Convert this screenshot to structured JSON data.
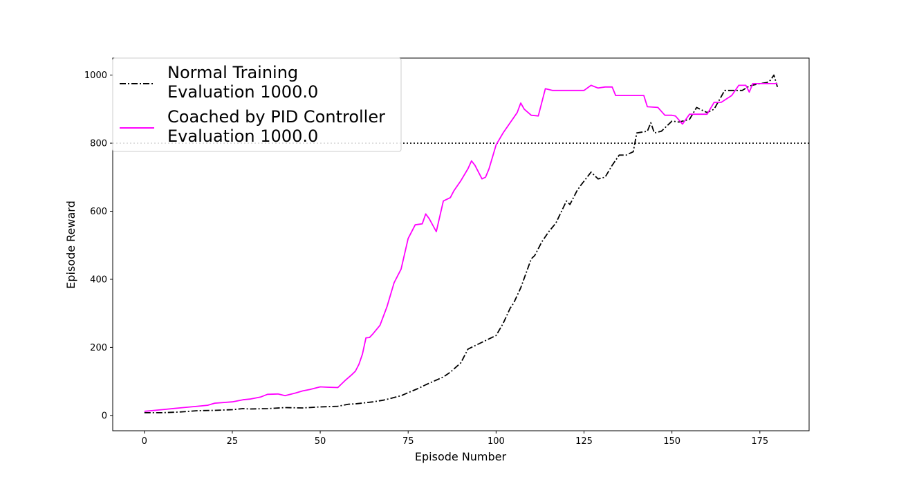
{
  "chart_data": {
    "type": "line",
    "xlabel": "Episode Number",
    "ylabel": "Episode Reward",
    "xlim": [
      -9,
      189
    ],
    "ylim": [
      -45,
      1050
    ],
    "xticks": [
      0,
      25,
      50,
      75,
      100,
      125,
      150,
      175
    ],
    "yticks": [
      0,
      200,
      400,
      600,
      800,
      1000
    ],
    "grid": false,
    "legend_position": "top-left",
    "reference_line": {
      "y": 800,
      "style": "dotted",
      "color": "#000000"
    },
    "series": [
      {
        "name": "Normal Training\nEvaluation 1000.0",
        "color": "#000000",
        "style": "dashdot",
        "x": [
          0,
          5,
          10,
          15,
          20,
          25,
          28,
          30,
          35,
          40,
          45,
          50,
          55,
          58,
          60,
          65,
          68,
          70,
          73,
          75,
          78,
          80,
          85,
          87,
          90,
          92,
          95,
          97,
          100,
          102,
          104,
          105,
          107,
          110,
          111,
          113,
          115,
          117,
          120,
          121,
          123,
          124,
          127,
          129,
          131,
          133,
          135,
          137,
          139,
          140,
          143,
          144,
          145,
          147,
          150,
          152,
          155,
          157,
          160,
          162,
          165,
          170,
          172,
          175,
          177,
          178,
          179,
          180
        ],
        "y": [
          8,
          8,
          10,
          14,
          15,
          17,
          20,
          19,
          20,
          23,
          22,
          25,
          27,
          33,
          34,
          40,
          45,
          50,
          58,
          67,
          80,
          90,
          113,
          127,
          155,
          195,
          210,
          220,
          235,
          270,
          315,
          330,
          375,
          460,
          470,
          510,
          540,
          565,
          630,
          620,
          660,
          675,
          715,
          695,
          700,
          735,
          765,
          765,
          775,
          830,
          835,
          860,
          830,
          835,
          865,
          862,
          870,
          905,
          890,
          900,
          955,
          955,
          968,
          975,
          978,
          985,
          1000,
          965
        ]
      },
      {
        "name": "Coached by PID Controller\nEvaluation 1000.0",
        "color": "#ff00ff",
        "style": "solid",
        "x": [
          0,
          5,
          10,
          15,
          18,
          20,
          25,
          28,
          30,
          33,
          35,
          38,
          40,
          43,
          45,
          47,
          50,
          52,
          55,
          57,
          59,
          60,
          61,
          62,
          63,
          64,
          65,
          67,
          69,
          71,
          73,
          75,
          77,
          79,
          80,
          81,
          83,
          85,
          87,
          88,
          90,
          92,
          93,
          94,
          96,
          97,
          98,
          100,
          102,
          104,
          106,
          107,
          108,
          110,
          112,
          114,
          116,
          118,
          120,
          125,
          127,
          129,
          131,
          133,
          134,
          136,
          142,
          143,
          146,
          148,
          150,
          151,
          153,
          155,
          160,
          162,
          164,
          167,
          169,
          171,
          172,
          173,
          175,
          177,
          180
        ],
        "y": [
          12,
          17,
          22,
          27,
          30,
          36,
          40,
          46,
          48,
          54,
          62,
          63,
          58,
          66,
          72,
          76,
          84,
          83,
          82,
          102,
          120,
          130,
          150,
          180,
          228,
          229,
          240,
          265,
          320,
          390,
          430,
          520,
          560,
          563,
          592,
          578,
          540,
          630,
          640,
          660,
          690,
          725,
          748,
          735,
          695,
          700,
          725,
          795,
          830,
          860,
          890,
          918,
          900,
          882,
          880,
          960,
          955,
          955,
          955,
          955,
          970,
          962,
          965,
          965,
          940,
          940,
          940,
          907,
          905,
          882,
          882,
          880,
          856,
          885,
          885,
          920,
          920,
          940,
          970,
          970,
          950,
          975,
          975,
          975,
          975
        ]
      }
    ]
  }
}
